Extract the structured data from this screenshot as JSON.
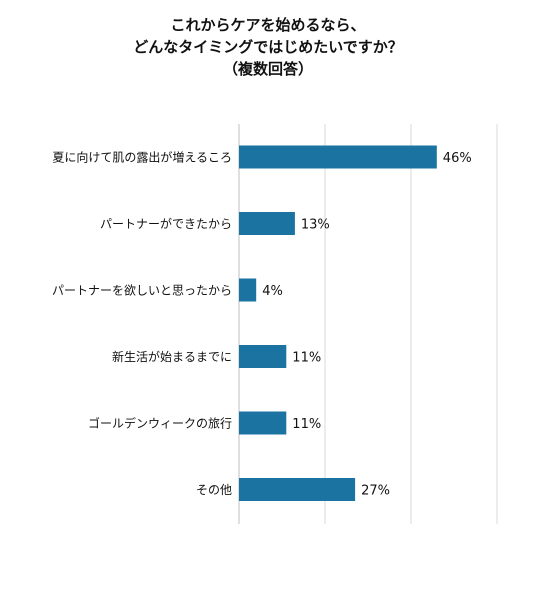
{
  "chart_data": {
    "type": "bar",
    "orientation": "horizontal",
    "title_lines": [
      "これからケアを始めるなら、",
      "どんなタイミングではじめたいですか？",
      "（複数回答）"
    ],
    "categories": [
      "夏に向けて肌の露出が増えるころ",
      "パートナーができたから",
      "パートナーを欲しいと思ったから",
      "新生活が始まるまでに",
      "ゴールデンウィークの旅行",
      "その他"
    ],
    "values": [
      46,
      13,
      4,
      11,
      11,
      27
    ],
    "value_labels": [
      "46%",
      "13%",
      "4%",
      "11%",
      "11%",
      "27%"
    ],
    "unit": "%",
    "xlim": [
      0,
      60
    ],
    "grid": true,
    "legend": "none",
    "colors": {
      "bar": "#1a73a0",
      "grid": "#d9d9d9",
      "axis": "#bfbfbf"
    }
  }
}
